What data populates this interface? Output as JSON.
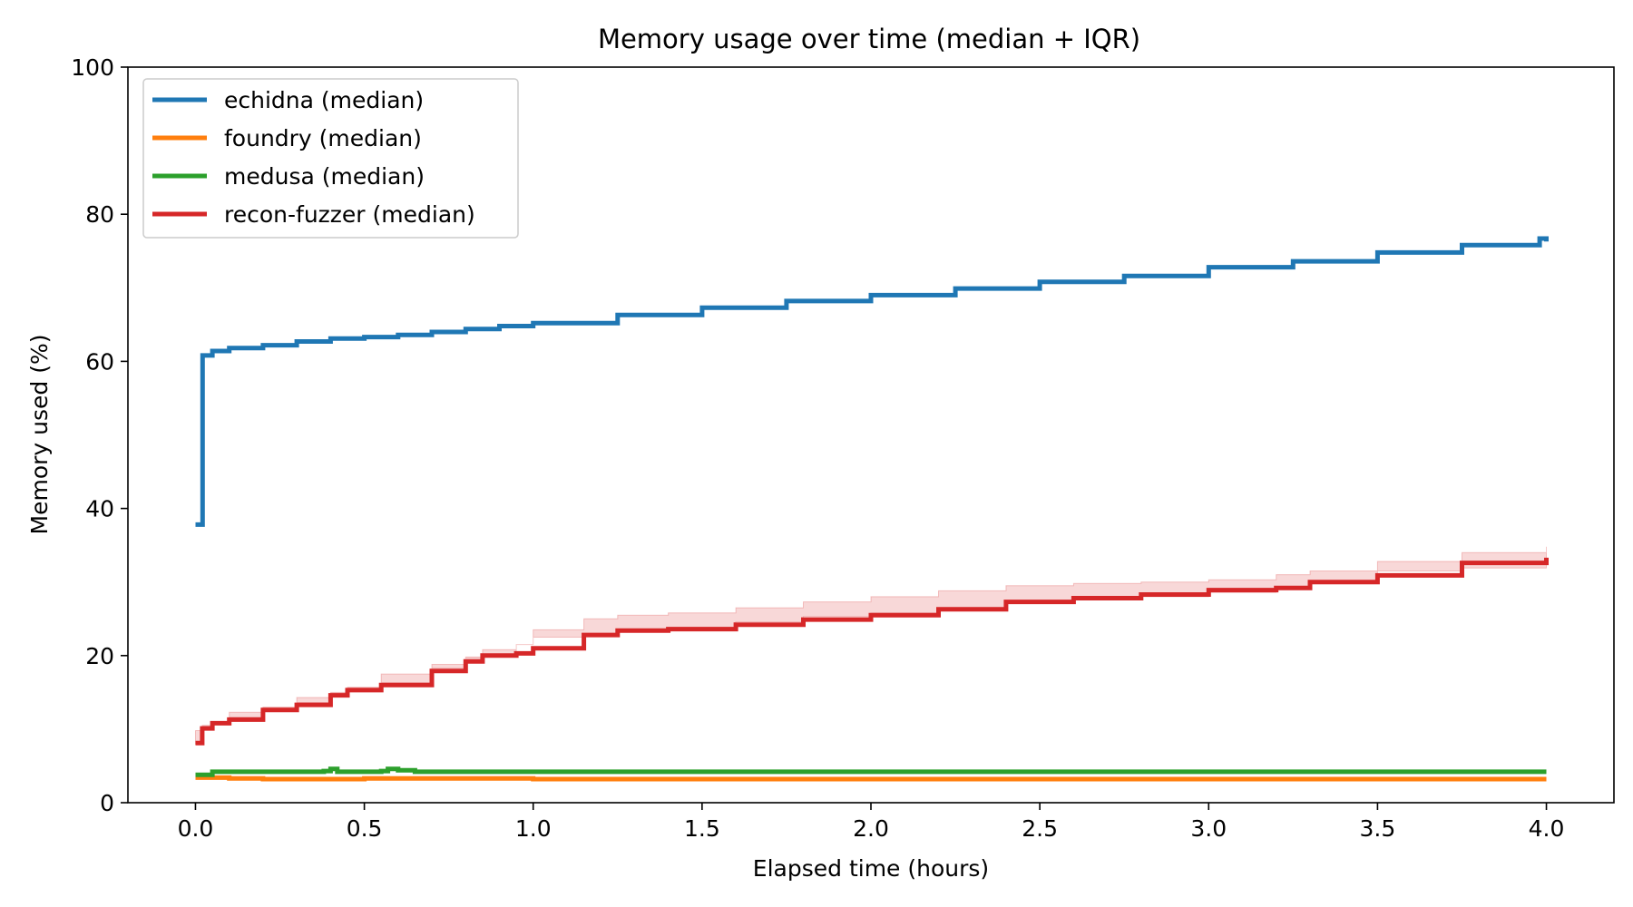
{
  "chart_data": {
    "type": "line",
    "title": "Memory usage over time (median + IQR)",
    "xlabel": "Elapsed time (hours)",
    "ylabel": "Memory used (%)",
    "xlim": [
      -0.2,
      4.2
    ],
    "ylim": [
      0,
      100
    ],
    "xticks": [
      0.0,
      0.5,
      1.0,
      1.5,
      2.0,
      2.5,
      3.0,
      3.5,
      4.0
    ],
    "xtick_labels": [
      "0.0",
      "0.5",
      "1.0",
      "1.5",
      "2.0",
      "2.5",
      "3.0",
      "3.5",
      "4.0"
    ],
    "yticks": [
      0,
      20,
      40,
      60,
      80,
      100
    ],
    "ytick_labels": [
      "0",
      "20",
      "40",
      "60",
      "80",
      "100"
    ],
    "grid": false,
    "legend_position": "top-left",
    "line_style": "step",
    "series": [
      {
        "name": "echidna (median)",
        "color": "#1f77b4",
        "x": [
          0.0,
          0.02,
          0.021,
          0.05,
          0.1,
          0.2,
          0.3,
          0.4,
          0.5,
          0.6,
          0.7,
          0.8,
          0.9,
          1.0,
          1.25,
          1.5,
          1.75,
          2.0,
          2.25,
          2.5,
          2.75,
          3.0,
          3.25,
          3.5,
          3.75,
          3.98,
          4.0
        ],
        "y": [
          37.8,
          37.8,
          60.8,
          61.4,
          61.8,
          62.2,
          62.7,
          63.1,
          63.3,
          63.6,
          64.0,
          64.4,
          64.8,
          65.2,
          66.3,
          67.3,
          68.2,
          69.0,
          69.9,
          70.8,
          71.6,
          72.8,
          73.6,
          74.8,
          75.8,
          76.7,
          76.3
        ]
      },
      {
        "name": "foundry (median)",
        "color": "#ff7f0e",
        "x": [
          0.0,
          0.1,
          0.2,
          0.5,
          1.0,
          1.5,
          2.0,
          2.5,
          3.0,
          3.5,
          4.0
        ],
        "y": [
          3.4,
          3.3,
          3.2,
          3.3,
          3.2,
          3.2,
          3.2,
          3.2,
          3.2,
          3.2,
          3.2
        ]
      },
      {
        "name": "medusa (median)",
        "color": "#2ca02c",
        "x": [
          0.0,
          0.05,
          0.38,
          0.4,
          0.42,
          0.55,
          0.57,
          0.6,
          0.65,
          1.0,
          2.0,
          3.0,
          4.0
        ],
        "y": [
          3.8,
          4.2,
          4.3,
          4.6,
          4.2,
          4.3,
          4.6,
          4.4,
          4.2,
          4.2,
          4.2,
          4.2,
          4.2
        ]
      },
      {
        "name": "recon-fuzzer (median)",
        "color": "#d62728",
        "iqr_low": [
          7.9,
          9.8,
          10.5,
          11.0,
          12.3,
          13.0,
          14.3,
          15.0,
          15.7,
          17.5,
          18.8,
          19.8,
          20.0,
          21.5,
          22.5,
          23.0,
          23.2,
          23.8,
          24.6,
          25.3,
          25.8,
          26.5,
          27.2,
          27.8,
          28.0,
          28.6,
          29.0,
          30.2,
          31.5,
          31.9
        ],
        "iqr_high": [
          8.3,
          10.4,
          11.0,
          11.6,
          12.9,
          13.6,
          14.9,
          15.6,
          16.3,
          18.3,
          19.6,
          20.8,
          21.5,
          23.5,
          25.0,
          25.5,
          25.8,
          26.5,
          27.3,
          28.0,
          28.8,
          29.5,
          29.8,
          30.0,
          30.3,
          31.0,
          31.5,
          32.8,
          34.0,
          34.8
        ],
        "x": [
          0.0,
          0.02,
          0.05,
          0.1,
          0.2,
          0.3,
          0.4,
          0.45,
          0.55,
          0.7,
          0.8,
          0.85,
          0.95,
          1.0,
          1.15,
          1.25,
          1.4,
          1.6,
          1.8,
          2.0,
          2.2,
          2.4,
          2.6,
          2.8,
          3.0,
          3.2,
          3.3,
          3.5,
          3.75,
          4.0
        ],
        "y": [
          8.1,
          10.1,
          10.8,
          11.3,
          12.6,
          13.3,
          14.6,
          15.3,
          16.0,
          17.9,
          19.2,
          20.0,
          20.3,
          21.0,
          22.8,
          23.4,
          23.6,
          24.2,
          24.9,
          25.5,
          26.3,
          27.3,
          27.8,
          28.3,
          28.9,
          29.2,
          30.0,
          30.9,
          32.6,
          33.3
        ]
      }
    ]
  }
}
